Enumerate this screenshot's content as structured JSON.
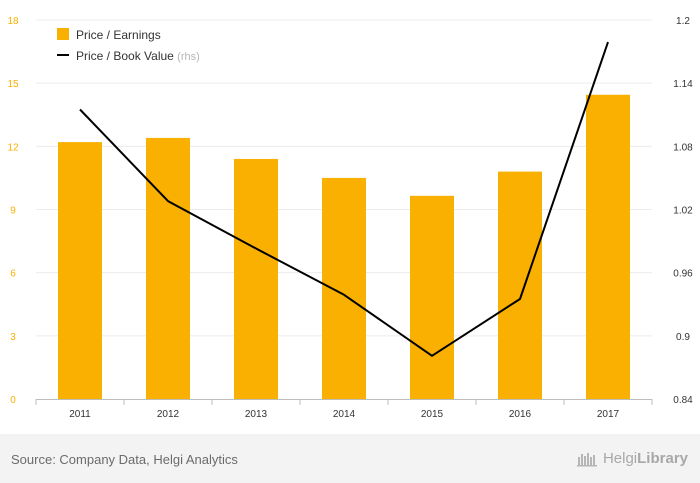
{
  "chart_data": {
    "type": "bar",
    "categories": [
      "2011",
      "2012",
      "2013",
      "2014",
      "2015",
      "2016",
      "2017"
    ],
    "series": [
      {
        "name": "Price / Earnings",
        "type": "bar",
        "axis": "left",
        "color": "#f9b000",
        "values": [
          12.2,
          12.4,
          11.4,
          10.5,
          9.65,
          10.8,
          14.45
        ]
      },
      {
        "name": "Price / Book Value",
        "name_suffix": "(rhs)",
        "type": "line",
        "axis": "right",
        "color": "#000000",
        "values": [
          1.115,
          1.028,
          0.983,
          0.939,
          0.881,
          0.935,
          1.179
        ]
      }
    ],
    "y_left": {
      "min": 0,
      "max": 18,
      "ticks": [
        "0",
        "3",
        "6",
        "9",
        "12",
        "15",
        "18"
      ],
      "color": "#f9b000"
    },
    "y_right": {
      "min": 0.84,
      "max": 1.2,
      "ticks": [
        "0.84",
        "0.9",
        "0.96",
        "1.02",
        "1.08",
        "1.14",
        "1.2"
      ]
    },
    "grid": true,
    "legend_position": "top-left"
  },
  "footer": {
    "source": "Source: Company Data, Helgi Analytics",
    "logo_text_plain": "Helgi",
    "logo_text_bold": "Library"
  }
}
